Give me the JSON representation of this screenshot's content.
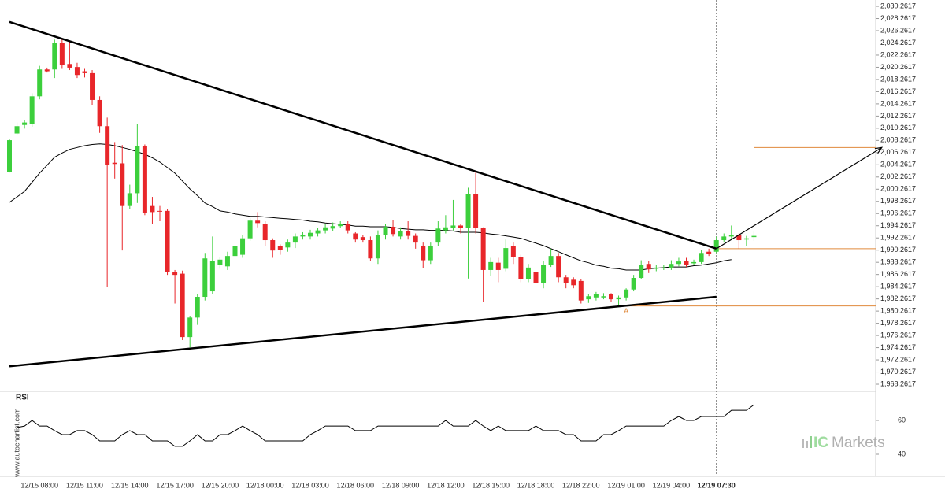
{
  "chart_data": {
    "type": "candlestick",
    "categories": [
      null,
      null,
      null,
      null,
      "12/15 08:00",
      null,
      null,
      null,
      null,
      null,
      "12/15 11:00",
      null,
      null,
      null,
      null,
      null,
      "12/15 14:00",
      null,
      null,
      null,
      null,
      null,
      "12/15 17:00",
      null,
      null,
      null,
      null,
      null,
      "12/15 20:00",
      null,
      null,
      null,
      null,
      null,
      "12/18 00:00",
      null,
      null,
      null,
      null,
      null,
      "12/18 03:00",
      null,
      null,
      null,
      null,
      null,
      "12/18 06:00",
      null,
      null,
      null,
      null,
      null,
      "12/18 09:00",
      null,
      null,
      null,
      null,
      null,
      "12/18 12:00",
      null,
      null,
      null,
      null,
      null,
      "12/18 15:00",
      null,
      null,
      null,
      null,
      null,
      "12/18 18:00",
      null,
      null,
      null,
      null,
      null,
      "12/18 22:00",
      null,
      null,
      null,
      null,
      null,
      "12/19 01:00",
      null,
      null,
      null,
      null,
      null,
      "12/19 04:00",
      null,
      null,
      null,
      null,
      null,
      "12/19 07:30",
      null,
      null,
      null,
      null,
      null
    ],
    "current_category": 94,
    "open": [
      2003.1,
      2009.4,
      2010.8,
      2011.0,
      2015.5,
      2019.9,
      2019.9,
      2024.2,
      2020.8,
      2020.3,
      2019.6,
      2019.3,
      2014.9,
      2010.6,
      2004.6,
      2004.5,
      1997.5,
      1999.6,
      2007.4,
      1997.5,
      1996.7,
      1996.7,
      1986.7,
      1986.4,
      1976.0,
      1979.2,
      1982.6,
      1983.5,
      1987.8,
      1987.6,
      1989.3,
      1989.5,
      1992.2,
      1995.1,
      1994.6,
      1991.9,
      1990.9,
      1990.7,
      1991.5,
      1992.5,
      1992.5,
      1993.0,
      1993.5,
      1993.8,
      1994.2,
      1994.5,
      1993.0,
      1992.4,
      1991.9,
      1988.9,
      1992.8,
      1994.1,
      1992.5,
      1993.4,
      1992.6,
      1991.0,
      1988.6,
      1991.5,
      1993.5,
      1993.9,
      1994.3,
      1993.9,
      1999.4,
      1993.9,
      1987.0,
      1988.2,
      1987.2,
      1990.9,
      1989.1,
      1985.5,
      1986.7,
      1984.8,
      1987.8,
      1989.3,
      1985.8,
      1985.4,
      1985.2,
      1982.2,
      1982.5,
      1982.5,
      1983.0,
      1982.2,
      1982.5,
      1983.8,
      1985.7,
      1988.0,
      1987.2,
      1987.3,
      1987.4,
      1988.0,
      1988.5,
      1988.1,
      1988.3,
      1990.0,
      1990.0,
      1991.9,
      1992.5,
      1992.8,
      1992.0,
      1992.4
    ],
    "high": [
      2008.5,
      2011.2,
      2011.6,
      2016.0,
      2020.5,
      2020.2,
      2024.8,
      2024.9,
      2024.5,
      2021.0,
      2020.0,
      2019.8,
      2015.5,
      2012.0,
      2008.0,
      2007.5,
      2001.0,
      2011.0,
      2007.6,
      1999.0,
      1997.5,
      1997.0,
      1987.0,
      1986.9,
      1979.5,
      1983.0,
      1989.8,
      1992.5,
      1989.2,
      1990.0,
      1994.5,
      1992.8,
      1995.5,
      1996.5,
      1995.0,
      1992.2,
      1991.2,
      1992.0,
      1993.0,
      1993.2,
      1993.6,
      1993.9,
      1994.5,
      1994.8,
      1995.0,
      1995.0,
      1993.2,
      1992.8,
      1992.5,
      1993.5,
      1994.5,
      1995.2,
      1994.0,
      1995.0,
      1993.0,
      1991.5,
      1991.5,
      1995.0,
      1996.0,
      1998.5,
      1994.5,
      2000.5,
      2003.3,
      1994.0,
      1989.0,
      1989.0,
      1992.0,
      1991.5,
      1989.5,
      1988.0,
      1987.5,
      1988.5,
      1990.5,
      1989.8,
      1986.2,
      1985.8,
      1985.5,
      1983.0,
      1983.4,
      1983.2,
      1983.2,
      1982.8,
      1984.0,
      1986.2,
      1988.6,
      1988.5,
      1987.8,
      1987.9,
      1988.6,
      1989.0,
      1989.0,
      1988.7,
      1990.3,
      1990.5,
      1992.5,
      1993.0,
      1994.3,
      1993.0,
      1992.6,
      1993.3
    ],
    "low": [
      2003.0,
      2009.1,
      2010.2,
      2010.5,
      2015.0,
      2019.4,
      2018.5,
      2020.0,
      2019.8,
      2018.5,
      2018.6,
      2014.0,
      2009.5,
      1984.2,
      2002.0,
      1990.2,
      1997.0,
      1998.0,
      1996.0,
      1994.6,
      1995.0,
      1986.2,
      1981.5,
      1975.5,
      1974.3,
      1978.0,
      1982.0,
      1983.0,
      1987.2,
      1987.0,
      1988.7,
      1989.0,
      1991.8,
      1994.0,
      1991.0,
      1989.0,
      1989.5,
      1990.0,
      1990.6,
      1992.0,
      1992.0,
      1992.5,
      1993.0,
      1993.4,
      1993.9,
      1993.0,
      1991.5,
      1991.5,
      1988.5,
      1988.0,
      1992.0,
      1992.5,
      1992.0,
      1992.0,
      1990.5,
      1987.3,
      1988.0,
      1991.0,
      1993.0,
      1993.5,
      1993.0,
      1985.6,
      1993.0,
      1981.7,
      1986.0,
      1985.0,
      1986.8,
      1988.0,
      1985.0,
      1985.0,
      1983.5,
      1984.0,
      1987.5,
      1985.0,
      1984.0,
      1984.0,
      1981.5,
      1981.6,
      1982.0,
      1982.2,
      1981.8,
      1981.2,
      1982.0,
      1983.5,
      1985.5,
      1986.5,
      1986.8,
      1987.0,
      1987.0,
      1987.6,
      1987.5,
      1987.8,
      1988.0,
      1989.3,
      1989.8,
      1991.5,
      1992.0,
      1990.5,
      1991.0,
      1991.8
    ],
    "close": [
      2008.3,
      2010.6,
      2011.2,
      2015.5,
      2019.9,
      2019.6,
      2024.2,
      2020.7,
      2020.2,
      2019.0,
      2019.3,
      2014.9,
      2010.6,
      2004.2,
      2004.4,
      1997.5,
      1999.6,
      2007.4,
      1996.4,
      1996.5,
      1996.6,
      1986.7,
      1986.2,
      1976.0,
      1979.2,
      1982.6,
      1988.9,
      1988.5,
      1988.7,
      1989.3,
      1990.9,
      1992.2,
      1995.1,
      1994.7,
      1991.9,
      1990.2,
      1990.3,
      1991.5,
      1992.5,
      1992.8,
      1993.1,
      1993.5,
      1994.0,
      1994.2,
      1994.6,
      1993.5,
      1992.0,
      1991.9,
      1988.9,
      1992.8,
      1994.1,
      1992.9,
      1993.4,
      1992.6,
      1991.5,
      1988.6,
      1991.0,
      1993.8,
      1994.0,
      1994.3,
      1993.9,
      1999.4,
      1993.9,
      1987.0,
      1988.3,
      1987.0,
      1990.6,
      1989.1,
      1985.5,
      1987.4,
      1984.8,
      1987.8,
      1989.3,
      1985.8,
      1984.8,
      1984.5,
      1982.0,
      1982.7,
      1983.0,
      1982.7,
      1982.2,
      1982.5,
      1983.8,
      1985.7,
      1987.8,
      1987.1,
      1987.4,
      1987.4,
      1988.0,
      1988.4,
      1987.9,
      1988.3,
      1989.8,
      1989.7,
      1991.9,
      1992.5,
      1992.8,
      1991.9,
      1992.2,
      1992.6
    ],
    "up_color": "#3ccf3c",
    "down_color": "#e8262a",
    "moving_average": {
      "color": "#000000",
      "values": [
        1998.1,
        1999.0,
        1999.9,
        2001.4,
        2002.9,
        2004.2,
        2005.5,
        2006.2,
        2006.8,
        2007.1,
        2007.4,
        2007.6,
        2007.7,
        2007.6,
        2007.4,
        2007.1,
        2006.8,
        2006.4,
        2006.0,
        2005.4,
        2004.7,
        2003.8,
        2002.9,
        2001.6,
        2000.3,
        1999.2,
        1998.0,
        1997.4,
        1996.7,
        1996.5,
        1996.2,
        1996.0,
        1995.8,
        1995.8,
        1995.7,
        1995.6,
        1995.5,
        1995.4,
        1995.3,
        1995.2,
        1995.0,
        1994.9,
        1994.7,
        1994.6,
        1994.5,
        1994.4,
        1994.2,
        1994.2,
        1994.1,
        1994.1,
        1994.1,
        1994.0,
        1993.8,
        1993.7,
        1993.6,
        1993.6,
        1993.5,
        1993.5,
        1993.5,
        1993.4,
        1993.2,
        1993.2,
        1993.2,
        1993.1,
        1992.9,
        1992.8,
        1992.6,
        1992.4,
        1992.2,
        1991.8,
        1991.4,
        1991.0,
        1990.5,
        1990.0,
        1989.5,
        1989.0,
        1988.5,
        1988.2,
        1987.8,
        1987.6,
        1987.3,
        1987.2,
        1987.0,
        1987.0,
        1987.0,
        1987.2,
        1987.3,
        1987.4,
        1987.5,
        1987.5,
        1987.5,
        1987.7,
        1987.8,
        1988.0,
        1988.2,
        1988.5,
        1988.7,
        null,
        null,
        null
      ]
    },
    "trend_lines": [
      {
        "color": "#000000",
        "x": [
          0,
          94
        ],
        "y": [
          2027.7,
          1990.5
        ]
      },
      {
        "color": "#000000",
        "x": [
          0,
          94
        ],
        "y": [
          1971.2,
          1982.6
        ]
      }
    ],
    "arrow": {
      "color": "#000000",
      "x": [
        94,
        116
      ],
      "y": [
        1990.5,
        2007.1
      ]
    },
    "levels": [
      {
        "color": "#e08a3c",
        "from": 99,
        "value": 2007.1
      },
      {
        "color": "#e08a3c",
        "from": 94,
        "value": 1990.5
      },
      {
        "color": "#e08a3c",
        "from": 82,
        "value": 1981.1,
        "label": "A"
      }
    ],
    "ylim": [
      1967.36,
      2031.3
    ],
    "yticks": [
      {
        "value": 2030.2617,
        "label": "2,030.2617"
      },
      {
        "value": 2028.2617,
        "label": "2,028.2617"
      },
      {
        "value": 2026.2617,
        "label": "2,026.2617"
      },
      {
        "value": 2024.2617,
        "label": "2,024.2617"
      },
      {
        "value": 2022.2617,
        "label": "2,022.2617"
      },
      {
        "value": 2020.2617,
        "label": "2,020.2617"
      },
      {
        "value": 2018.2617,
        "label": "2,018.2617"
      },
      {
        "value": 2016.2617,
        "label": "2,016.2617"
      },
      {
        "value": 2014.2617,
        "label": "2,014.2617"
      },
      {
        "value": 2012.2617,
        "label": "2,012.2617"
      },
      {
        "value": 2010.2617,
        "label": "2,010.2617"
      },
      {
        "value": 2008.2617,
        "label": "2,008.2617"
      },
      {
        "value": 2006.2617,
        "label": "2,006.2617"
      },
      {
        "value": 2004.2617,
        "label": "2,004.2617"
      },
      {
        "value": 2002.2617,
        "label": "2,002.2617"
      },
      {
        "value": 2000.2617,
        "label": "2,000.2617"
      },
      {
        "value": 1998.2617,
        "label": "1,998.2617"
      },
      {
        "value": 1996.2617,
        "label": "1,996.2617"
      },
      {
        "value": 1994.2617,
        "label": "1,994.2617"
      },
      {
        "value": 1992.2617,
        "label": "1,992.2617"
      },
      {
        "value": 1990.2617,
        "label": "1,990.2617"
      },
      {
        "value": 1988.2617,
        "label": "1,988.2617"
      },
      {
        "value": 1986.2617,
        "label": "1,986.2617"
      },
      {
        "value": 1984.2617,
        "label": "1,984.2617"
      },
      {
        "value": 1982.2617,
        "label": "1,982.2617"
      },
      {
        "value": 1980.2617,
        "label": "1,980.2617"
      },
      {
        "value": 1978.2617,
        "label": "1,978.2617"
      },
      {
        "value": 1976.2617,
        "label": "1,976.2617"
      },
      {
        "value": 1974.2617,
        "label": "1,974.2617"
      },
      {
        "value": 1972.2617,
        "label": "1,972.2617"
      },
      {
        "value": 1970.2617,
        "label": "1,970.2617"
      },
      {
        "value": 1968.2617,
        "label": "1,968.2617"
      }
    ],
    "rsi": {
      "title": "RSI",
      "color": "#000000",
      "ylim": [
        29.3,
        77.2
      ],
      "yticks": [
        40,
        60
      ],
      "values": [
        null,
        55.8,
        56.7,
        60,
        56.7,
        56.7,
        54.0,
        51.6,
        51.6,
        54.0,
        54.0,
        51.6,
        47.9,
        47.9,
        47.9,
        51.6,
        54.0,
        51.6,
        51.6,
        47.9,
        47.9,
        47.9,
        44.7,
        44.7,
        47.9,
        51.6,
        47.9,
        47.9,
        51.6,
        51.6,
        54.0,
        56.7,
        54.0,
        51.6,
        47.9,
        47.9,
        47.9,
        47.9,
        47.9,
        47.9,
        51.6,
        54.0,
        56.7,
        56.7,
        56.7,
        56.7,
        54.0,
        54.0,
        54.0,
        56.7,
        56.7,
        56.7,
        56.7,
        56.7,
        56.7,
        56.7,
        56.7,
        56.7,
        60,
        56.7,
        56.7,
        56.7,
        60,
        56.7,
        54.0,
        56.7,
        54.0,
        54.0,
        54.0,
        54.0,
        56.7,
        54.0,
        54.0,
        54.0,
        51.6,
        51.6,
        47.9,
        47.9,
        47.9,
        51.6,
        51.6,
        54.0,
        56.7,
        56.7,
        56.7,
        56.7,
        56.7,
        56.7,
        60,
        62.3,
        60,
        60,
        62.3,
        62.3,
        62.3,
        62.3,
        66.0,
        66.0,
        66.0,
        69.3
      ]
    },
    "watermark": "www.autochartist.com",
    "brand": {
      "prefix": "IC",
      "name": "Markets"
    }
  }
}
